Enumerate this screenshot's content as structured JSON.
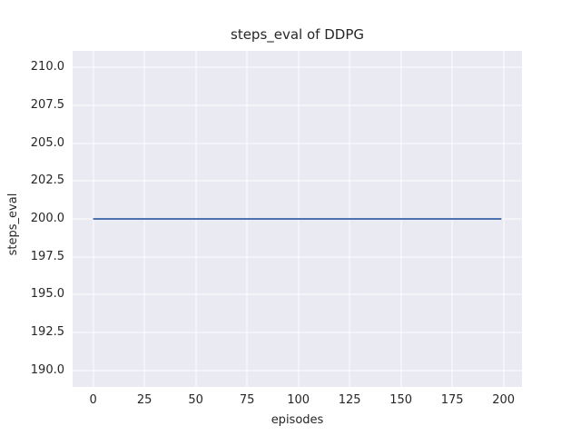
{
  "figure": {
    "background": "#ffffff",
    "axes_background": "#eaeaf2",
    "grid_color": "#ffffff",
    "text_color": "#262626"
  },
  "chart_data": {
    "type": "line",
    "title": "steps_eval of DDPG",
    "xlabel": "episodes",
    "ylabel": "steps_eval",
    "grid": true,
    "legend": false,
    "xlim": [
      -10.0,
      209.0
    ],
    "ylim": [
      188.9,
      211.1
    ],
    "x_ticks": [
      0,
      25,
      50,
      75,
      100,
      125,
      150,
      175,
      200
    ],
    "x_tick_labels": [
      "0",
      "25",
      "50",
      "75",
      "100",
      "125",
      "150",
      "175",
      "200"
    ],
    "y_ticks": [
      210.0,
      207.5,
      205.0,
      202.5,
      200.0,
      197.5,
      195.0,
      192.5,
      190.0
    ],
    "y_tick_labels": [
      "210.0",
      "207.5",
      "205.0",
      "202.5",
      "200.0",
      "197.5",
      "195.0",
      "192.5",
      "190.0"
    ],
    "series": [
      {
        "name": "steps_eval",
        "color": "#4c72b0",
        "line_width": 2,
        "x": [
          0,
          199
        ],
        "y": [
          200.0,
          200.0
        ],
        "note_constant_value": 200.0
      }
    ]
  }
}
